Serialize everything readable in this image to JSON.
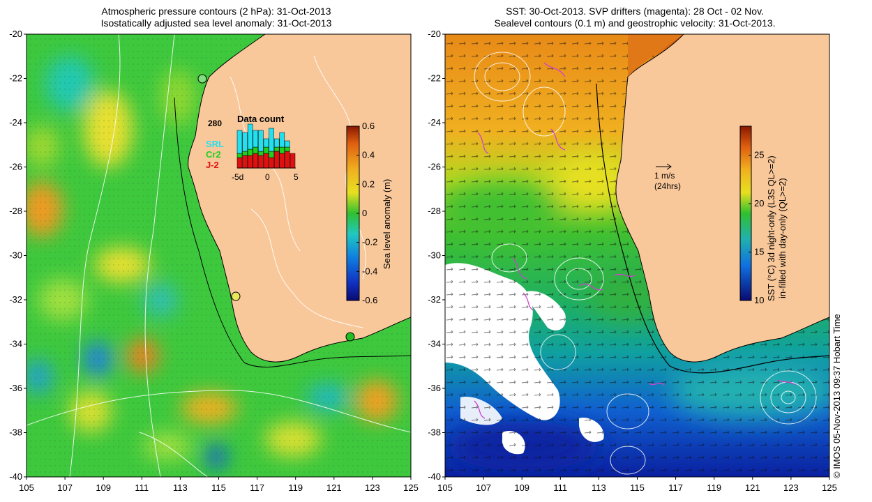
{
  "left_panel": {
    "title_line1": "Atmospheric pressure contours (2 hPa): 31-Oct-2013",
    "title_line2": "Isostatically adjusted sea level anomaly: 31-Oct-2013",
    "lat_ticks": [
      "-20",
      "-22",
      "-24",
      "-26",
      "-28",
      "-30",
      "-32",
      "-34",
      "-36",
      "-38",
      "-40"
    ],
    "lon_ticks": [
      "105",
      "107",
      "109",
      "111",
      "113",
      "115",
      "117",
      "119",
      "121",
      "123",
      "125"
    ],
    "colorbar": {
      "label": "Sea level anomaly (m)",
      "ticks": [
        "0.6",
        "0.4",
        "0.2",
        "0",
        "-0.2",
        "-0.4",
        "-0.6"
      ],
      "range": [
        -0.6,
        0.6
      ]
    },
    "data_count": {
      "title": "Data count",
      "max_label": "280",
      "x_ticks": [
        "-5d",
        "0",
        "5"
      ],
      "legend": [
        {
          "label": "SRL",
          "color": "#22e0f0"
        },
        {
          "label": "Cr2",
          "color": "#20d020"
        },
        {
          "label": "J-2",
          "color": "#e01010"
        }
      ],
      "bars": [
        {
          "srl": 0.55,
          "cr2": 0.1,
          "j2": 0.25
        },
        {
          "srl": 0.45,
          "cr2": 0.1,
          "j2": 0.3
        },
        {
          "srl": 0.6,
          "cr2": 0.15,
          "j2": 0.3
        },
        {
          "srl": 0.4,
          "cr2": 0.15,
          "j2": 0.35
        },
        {
          "srl": 0.5,
          "cr2": 0.1,
          "j2": 0.3
        },
        {
          "srl": 0.2,
          "cr2": 0.15,
          "j2": 0.35
        },
        {
          "srl": 0.55,
          "cr2": 0.15,
          "j2": 0.25
        },
        {
          "srl": 0.2,
          "cr2": 0.1,
          "j2": 0.4
        },
        {
          "srl": 0.35,
          "cr2": 0.15,
          "j2": 0.35
        },
        {
          "srl": 0.15,
          "cr2": 0.1,
          "j2": 0.4
        },
        {
          "srl": 0.0,
          "cr2": 0.0,
          "j2": 0.35
        }
      ]
    },
    "tide_gauge_colors": [
      "#7ee07e",
      "#e8e85a",
      "#20c020"
    ]
  },
  "right_panel": {
    "title_line1": "SST: 30-Oct-2013. SVP drifters (magenta): 28 Oct - 02 Nov.",
    "title_line2": "Sealevel contours (0.1 m) and geostrophic velocity: 31-Oct-2013.",
    "lat_ticks": [
      "-20",
      "-22",
      "-24",
      "-26",
      "-28",
      "-30",
      "-32",
      "-34",
      "-36",
      "-38",
      "-40"
    ],
    "lon_ticks": [
      "105",
      "107",
      "109",
      "111",
      "113",
      "115",
      "117",
      "119",
      "121",
      "123",
      "125"
    ],
    "velocity_scale_label": "1 m/s",
    "velocity_scale_sub": "(24hrs)",
    "colorbar": {
      "label_line1": "SST (°C) 3d night-only (L3S QL>=2)",
      "label_line2": "in-filled with day-only (QL>=2)",
      "ticks": [
        "25",
        "20",
        "15",
        "10"
      ],
      "range": [
        10,
        28
      ]
    }
  },
  "credit": "© IMOS 05-Nov-2013 09:37 Hobart Time",
  "colors": {
    "land": "#f9c89a",
    "sla_mid": "#3ec83e",
    "drifter": "#d040d0"
  }
}
